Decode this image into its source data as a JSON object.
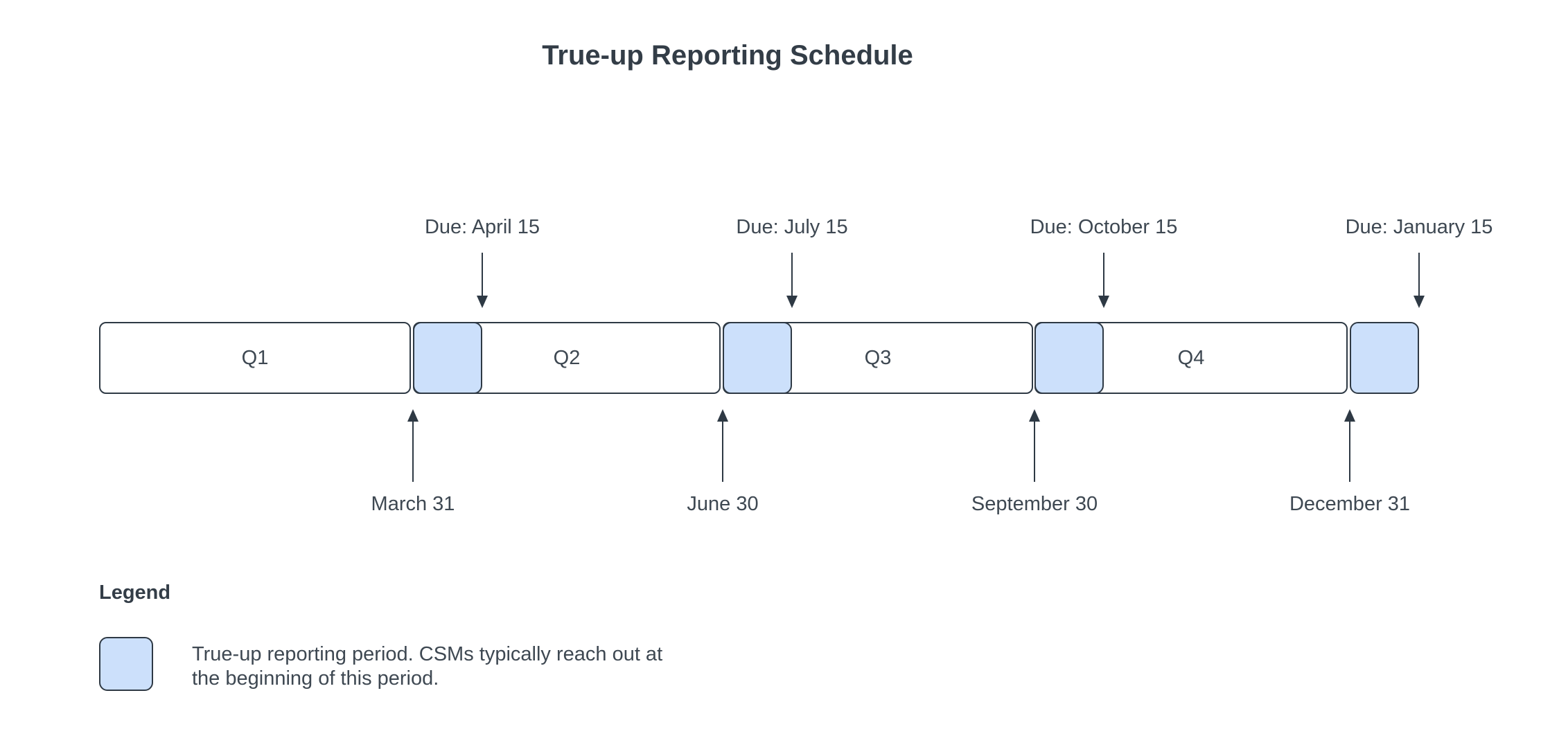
{
  "title": "True-up Reporting Schedule",
  "timeline": {
    "quarters": [
      {
        "label": "Q1"
      },
      {
        "label": "Q2"
      },
      {
        "label": "Q3"
      },
      {
        "label": "Q4"
      }
    ],
    "periods": [
      {
        "due_label": "Due: April 15",
        "end_label": "March 31"
      },
      {
        "due_label": "Due: July 15",
        "end_label": "June 30"
      },
      {
        "due_label": "Due: October 15",
        "end_label": "September 30"
      },
      {
        "due_label": "Due: January 15",
        "end_label": "December 31"
      }
    ]
  },
  "legend": {
    "title": "Legend",
    "description": "True-up reporting period. CSMs typically reach out at the beginning of this period.",
    "description_lines": [
      "True-up reporting period. CSMs typically reach out at",
      "the beginning of this period."
    ]
  },
  "colors": {
    "highlight_fill": "#cce0fb",
    "stroke": "#2e3944",
    "text": "#3e4852",
    "background": "#ffffff"
  }
}
